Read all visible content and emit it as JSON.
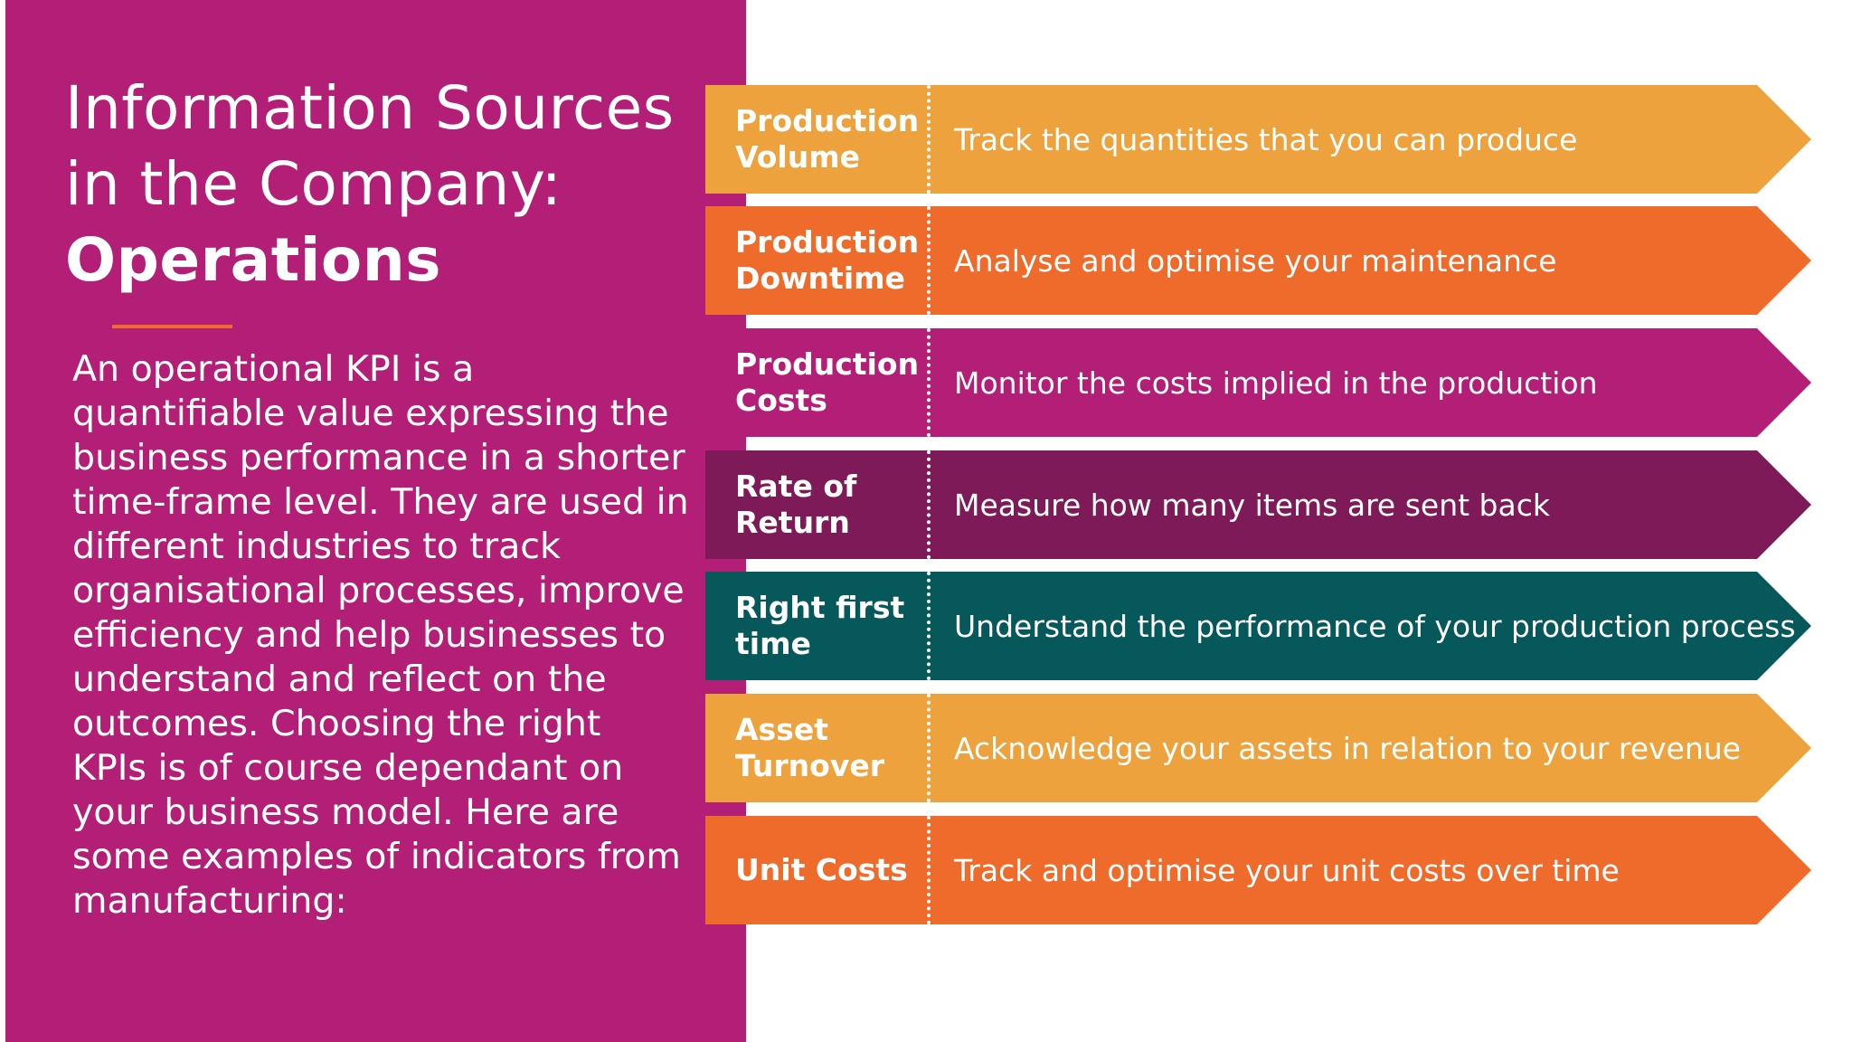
{
  "slide": {
    "title_line1": "Information Sources",
    "title_line2": "in the Company:",
    "title_line3": "Operations",
    "body_lines": [
      "An operational KPI is a",
      "quantifiable value expressing the",
      "business performance in a shorter",
      "time-frame level. They are used in",
      "different industries to track",
      "organisational processes, improve",
      "efficiency and help businesses to",
      "understand and reflect on the",
      "outcomes.  Choosing the right",
      "KPIs is of course dependant on",
      "your business model.  Here are",
      "some examples of indicators from",
      "manufacturing:"
    ]
  },
  "colors": {
    "panel": "#b31f76",
    "accent_line": "#ee6b2c",
    "light_orange": "#eea23e",
    "orange": "#ee6b2c",
    "magenta": "#b31f76",
    "plum": "#7e1a57",
    "teal": "#06585a"
  },
  "kpis": [
    {
      "label": "Production Volume",
      "description": "Track the quantities that you can produce",
      "color": "#eea23e"
    },
    {
      "label": "Production Downtime",
      "description": "Analyse and optimise your maintenance",
      "color": "#ee6b2c"
    },
    {
      "label": "Production Costs",
      "description": "Monitor the costs implied in the production",
      "color": "#b31f76"
    },
    {
      "label": "Rate of Return",
      "description": "Measure how many items are sent back",
      "color": "#7e1a57"
    },
    {
      "label": "Right first time",
      "description": "Understand the performance of your production process",
      "color": "#06585a"
    },
    {
      "label": "Asset Turnover",
      "description": "Acknowledge your assets in relation to your revenue",
      "color": "#eea23e"
    },
    {
      "label": "Unit Costs",
      "description": "Track and optimise your unit costs over time",
      "color": "#ee6b2c"
    }
  ]
}
